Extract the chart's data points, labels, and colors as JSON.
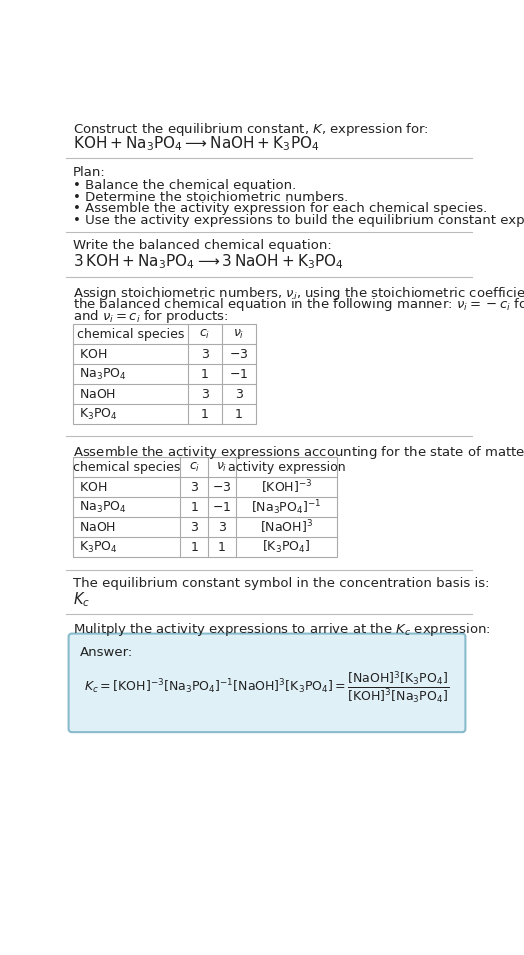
{
  "bg_color": "#ffffff",
  "title_line1": "Construct the equilibrium constant, $K$, expression for:",
  "title_line2": "$\\mathrm{KOH + Na_3PO_4 \\longrightarrow NaOH + K_3PO_4}$",
  "plan_header": "Plan:",
  "plan_bullets": [
    "• Balance the chemical equation.",
    "• Determine the stoichiometric numbers.",
    "• Assemble the activity expression for each chemical species.",
    "• Use the activity expressions to build the equilibrium constant expression."
  ],
  "balanced_header": "Write the balanced chemical equation:",
  "balanced_eq": "$\\mathrm{3\\,KOH + Na_3PO_4 \\longrightarrow 3\\,NaOH + K_3PO_4}$",
  "stoich_header_lines": [
    "Assign stoichiometric numbers, $\\nu_i$, using the stoichiometric coefficients, $c_i$, from",
    "the balanced chemical equation in the following manner: $\\nu_i = -c_i$ for reactants",
    "and $\\nu_i = c_i$ for products:"
  ],
  "table1_headers": [
    "chemical species",
    "$c_i$",
    "$\\nu_i$"
  ],
  "table1_rows": [
    [
      "$\\mathrm{KOH}$",
      "3",
      "$-3$"
    ],
    [
      "$\\mathrm{Na_3PO_4}$",
      "1",
      "$-1$"
    ],
    [
      "$\\mathrm{NaOH}$",
      "3",
      "3"
    ],
    [
      "$\\mathrm{K_3PO_4}$",
      "1",
      "1"
    ]
  ],
  "activity_header": "Assemble the activity expressions accounting for the state of matter and $\\nu_i$:",
  "table2_headers": [
    "chemical species",
    "$c_i$",
    "$\\nu_i$",
    "activity expression"
  ],
  "table2_rows": [
    [
      "$\\mathrm{KOH}$",
      "3",
      "$-3$",
      "$[\\mathrm{KOH}]^{-3}$"
    ],
    [
      "$\\mathrm{Na_3PO_4}$",
      "1",
      "$-1$",
      "$[\\mathrm{Na_3PO_4}]^{-1}$"
    ],
    [
      "$\\mathrm{NaOH}$",
      "3",
      "3",
      "$[\\mathrm{NaOH}]^{3}$"
    ],
    [
      "$\\mathrm{K_3PO_4}$",
      "1",
      "1",
      "$[\\mathrm{K_3PO_4}]$"
    ]
  ],
  "kc_header": "The equilibrium constant symbol in the concentration basis is:",
  "kc_symbol": "$K_c$",
  "multiply_header": "Mulitply the activity expressions to arrive at the $K_c$ expression:",
  "answer_label": "Answer:",
  "answer_box_color": "#dff0f7",
  "answer_box_border": "#88bbcc"
}
